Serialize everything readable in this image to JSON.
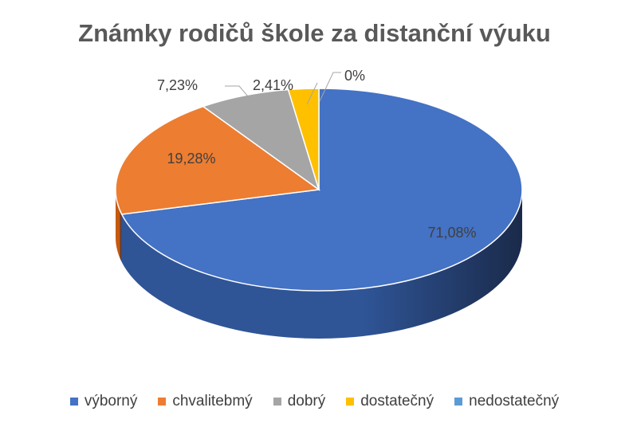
{
  "chart_data": {
    "type": "pie",
    "title": "Známky rodičů škole za distanční výuku",
    "categories": [
      "výborný",
      "chvalitebmý",
      "dobrý",
      "dostatečný",
      "nedostatečný"
    ],
    "values": [
      71.08,
      19.28,
      7.23,
      2.41,
      0
    ],
    "data_labels": [
      "71,08%",
      "19,28%",
      "7,23%",
      "2,41%",
      "0%"
    ],
    "colors": [
      "#4472C4",
      "#ED7D31",
      "#A5A5A5",
      "#FFC000",
      "#5B9BD5"
    ],
    "side_colors": [
      "#2F5597",
      "#C55A11",
      "#7F7F7F",
      "#BF9000",
      "#41719C"
    ],
    "legend_position": "bottom",
    "style": "3d"
  }
}
